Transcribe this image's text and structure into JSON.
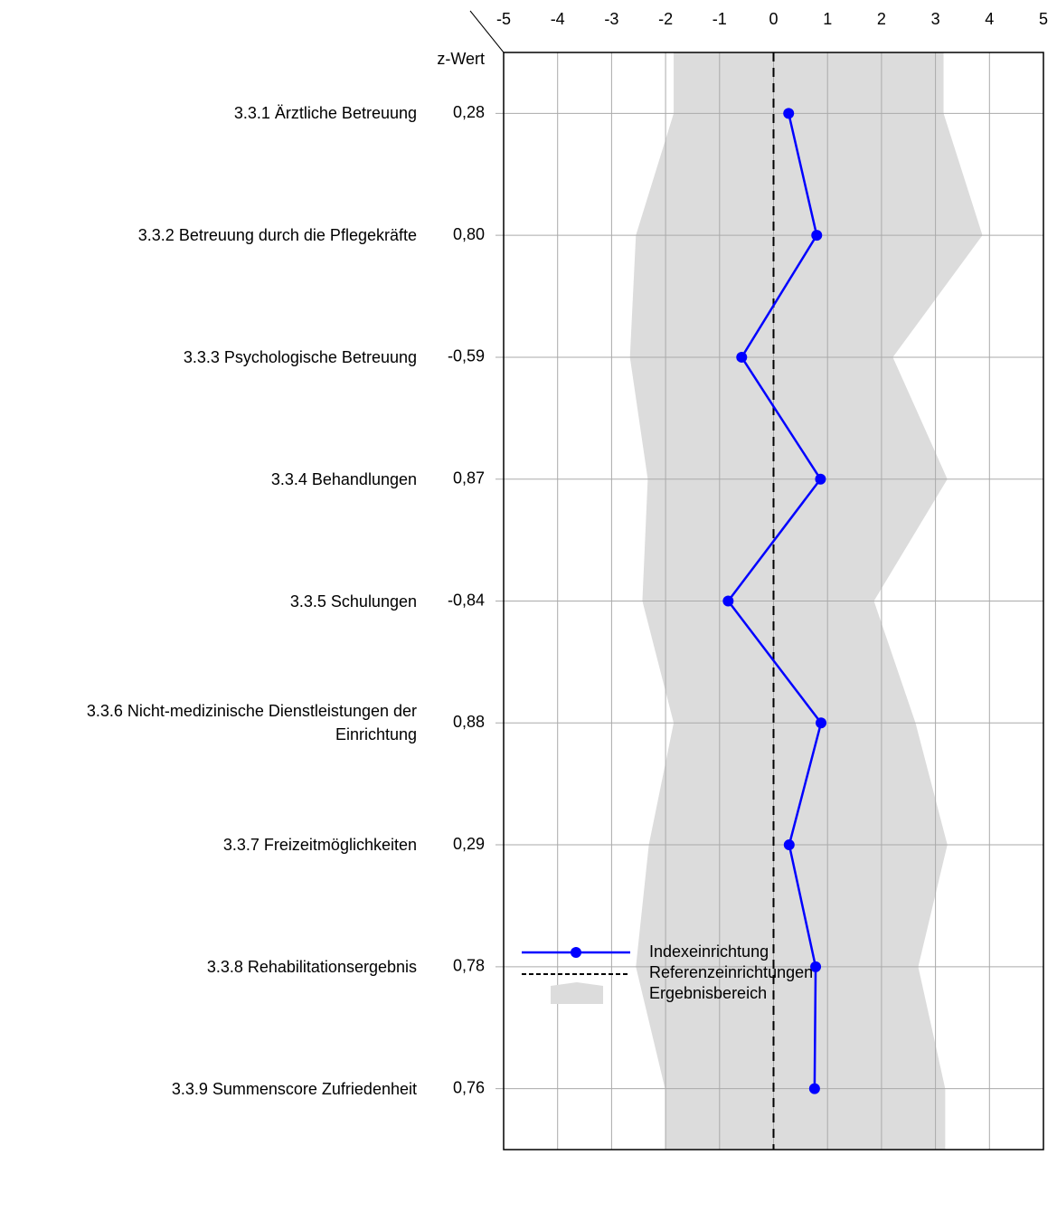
{
  "chart_data": {
    "type": "line",
    "axis_label": "z-Wert",
    "categories": [
      "3.3.1 Ärztliche Betreuung",
      "3.3.2 Betreuung durch die Pflegekräfte",
      "3.3.3 Psychologische Betreuung",
      "3.3.4 Behandlungen",
      "3.3.5 Schulungen",
      "3.3.6 Nicht-medizinische Dienstleistungen der Einrichtung",
      "3.3.7 Freizeitmöglichkeiten",
      "3.3.8 Rehabilitationsergebnis",
      "3.3.9 Summenscore Zufriedenheit"
    ],
    "series": [
      {
        "name": "Indexeinrichtung",
        "color": "#0000ff",
        "values": [
          0.28,
          0.8,
          -0.59,
          0.87,
          -0.84,
          0.88,
          0.29,
          0.78,
          0.76
        ],
        "value_labels": [
          "0,28",
          "0,80",
          "-0,59",
          "0,87",
          "-0,84",
          "0,88",
          "0,29",
          "0,78",
          "0,76"
        ]
      }
    ],
    "reference": {
      "name": "Referenzeinrichtungen",
      "value": 0
    },
    "band": {
      "name": "Ergebnisbereich",
      "color": "#dcdcdc",
      "lower": [
        -1.85,
        -2.55,
        -2.66,
        -2.33,
        -2.43,
        -1.85,
        -2.31,
        -2.55,
        -2.01
      ],
      "upper": [
        3.15,
        3.87,
        2.21,
        3.22,
        1.86,
        2.63,
        3.22,
        2.68,
        3.18
      ]
    },
    "xlim": [
      -5,
      5
    ],
    "xticks": [
      -5,
      -4,
      -3,
      -2,
      -1,
      0,
      1,
      2,
      3,
      4,
      5
    ],
    "grid": true
  }
}
